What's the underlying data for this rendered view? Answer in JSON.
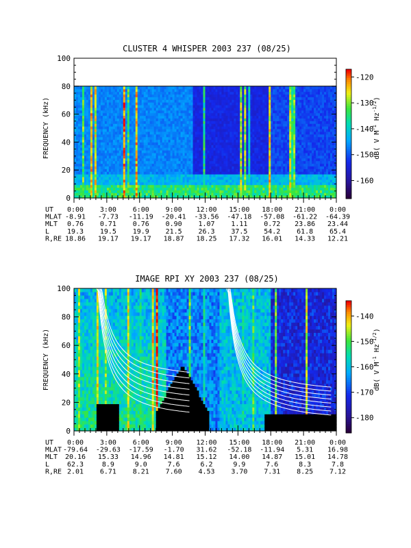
{
  "chart_data": [
    {
      "type": "heatmap",
      "title": "CLUSTER 4 WHISPER 2003 237 (08/25)",
      "ylabel": "FREQUENCY (kHz)",
      "ylim": [
        0,
        100
      ],
      "yticks": [
        "0",
        "20",
        "40",
        "60",
        "80",
        "100"
      ],
      "data_ymax": 80,
      "xlim": [
        "0:00",
        "24:00"
      ],
      "colorbar": {
        "label_parts": [
          "dB( V M",
          "-1",
          " Hz",
          "-1/2",
          ")"
        ],
        "range": [
          -167,
          -117
        ],
        "ticks": [
          "-120",
          "-130",
          "-140",
          "-150",
          "-160"
        ]
      },
      "ephemeris": {
        "rows": [
          "UT",
          "MLAT",
          "MLT",
          "L",
          "R,RE"
        ],
        "values": [
          [
            "0:00",
            "3:00",
            "6:00",
            "9:00",
            "12:00",
            "15:00",
            "18:00",
            "21:00",
            "0:00"
          ],
          [
            "-8.91",
            "-7.73",
            "-11.19",
            "-20.41",
            "-33.56",
            "-47.18",
            "-57.08",
            "-61.22",
            "-64.39"
          ],
          [
            "0.76",
            "0.71",
            "0.76",
            "0.90",
            "1.07",
            "1.11",
            "0.72",
            "23.86",
            "23.44"
          ],
          [
            "19.3",
            "19.5",
            "19.9",
            "21.5",
            "26.3",
            "37.5",
            "54.2",
            "61.8",
            "65.4"
          ],
          [
            "18.86",
            "19.17",
            "19.17",
            "18.87",
            "18.25",
            "17.32",
            "16.01",
            "14.33",
            "12.21"
          ]
        ]
      }
    },
    {
      "type": "heatmap",
      "title": "IMAGE RPI XY 2003 237 (08/25)",
      "ylabel": "FREQUENCY (kHz)",
      "ylim": [
        0,
        100
      ],
      "yticks": [
        "0",
        "20",
        "40",
        "60",
        "80",
        "100"
      ],
      "data_ymax": 100,
      "xlim": [
        "0:00",
        "24:00"
      ],
      "colorbar": {
        "label_parts": [
          "dB( V M",
          "-1",
          " Hz",
          "-1/2",
          ")"
        ],
        "range": [
          -186,
          -134
        ],
        "ticks": [
          "-140",
          "-150",
          "-160",
          "-170",
          "-180"
        ]
      },
      "ephemeris": {
        "rows": [
          "UT",
          "MLAT",
          "MLT",
          "L",
          "R,RE"
        ],
        "values": [
          [
            "0:00",
            "3:00",
            "6:00",
            "9:00",
            "12:00",
            "15:00",
            "18:00",
            "21:00",
            "0:00"
          ],
          [
            "-79.64",
            "-29.63",
            "-17.59",
            "-1.70",
            "31.62",
            "-52.18",
            "-11.94",
            "5.31",
            "16.98"
          ],
          [
            "20.16",
            "15.33",
            "14.96",
            "14.81",
            "15.12",
            "14.00",
            "14.87",
            "15.01",
            "14.78"
          ],
          [
            "62.3",
            "8.9",
            "9.0",
            "7.6",
            "6.2",
            "9.9",
            "7.6",
            "8.3",
            "7.8"
          ],
          [
            "2.01",
            "6.71",
            "8.21",
            "7.60",
            "4.53",
            "3.70",
            "7.31",
            "8.25",
            "7.12"
          ]
        ]
      }
    }
  ]
}
